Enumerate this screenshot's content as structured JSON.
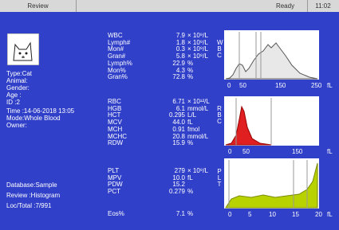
{
  "header": {
    "tab": "Review",
    "status": "Ready",
    "time": "11:02"
  },
  "patient": {
    "fields": [
      "Type:Cat",
      "Animal:",
      "Gender:",
      "Age  :",
      "ID   :2",
      "Time :14-06-2018 13:05",
      "Mode:Whole Blood",
      "Owner:"
    ],
    "footer": [
      "Database:Sample",
      "Review   :Histogram",
      "Loc/Total :7/991"
    ]
  },
  "groups": [
    [
      {
        "name": "WBC",
        "value": "7.9",
        "unit": "× 10⁹/L"
      },
      {
        "name": "Lymph#",
        "value": "1.8",
        "unit": "× 10⁹/L"
      },
      {
        "name": "Mon#",
        "value": "0.3",
        "unit": "× 10⁹/L"
      },
      {
        "name": "Gran#",
        "value": "5.8",
        "unit": "× 10⁹/L"
      },
      {
        "name": "Lymph%",
        "value": "22.9",
        "unit": "%"
      },
      {
        "name": "Mon%",
        "value": "4.3",
        "unit": "%"
      },
      {
        "name": "Gran%",
        "value": "72.8",
        "unit": "%"
      }
    ],
    [
      {
        "name": "RBC",
        "value": "6.71",
        "unit": "× 10¹²/L"
      },
      {
        "name": "HGB",
        "value": "6.1",
        "unit": "mmol/L"
      },
      {
        "name": "HCT",
        "value": "0.295",
        "unit": "L/L"
      },
      {
        "name": "MCV",
        "value": "44.0",
        "unit": "fL"
      },
      {
        "name": "MCH",
        "value": "0.91",
        "unit": "fmol"
      },
      {
        "name": "MCHC",
        "value": "20.8",
        "unit": "mmol/L"
      },
      {
        "name": "RDW",
        "value": "15.9",
        "unit": "%"
      }
    ],
    [
      {
        "name": "PLT",
        "value": "279",
        "unit": "× 10⁹/L"
      },
      {
        "name": "MPV",
        "value": "10.0",
        "unit": "fL"
      },
      {
        "name": "PDW",
        "value": "15.2"
      },
      {
        "name": "PCT",
        "value": "0.279",
        "unit": "%"
      }
    ],
    [
      {
        "name": "Eos%",
        "value": "7.1",
        "unit": "%"
      }
    ]
  ],
  "histograms": [
    {
      "label": "WBC",
      "ticks": [
        "0",
        "50",
        "150",
        "250"
      ],
      "unit": "fL"
    },
    {
      "label": "RBC",
      "ticks": [
        "0",
        "50",
        "150"
      ],
      "unit": "fL"
    },
    {
      "label": "PLT",
      "ticks": [
        "0",
        "5",
        "10",
        "15",
        "20"
      ],
      "unit": "fL"
    }
  ]
}
